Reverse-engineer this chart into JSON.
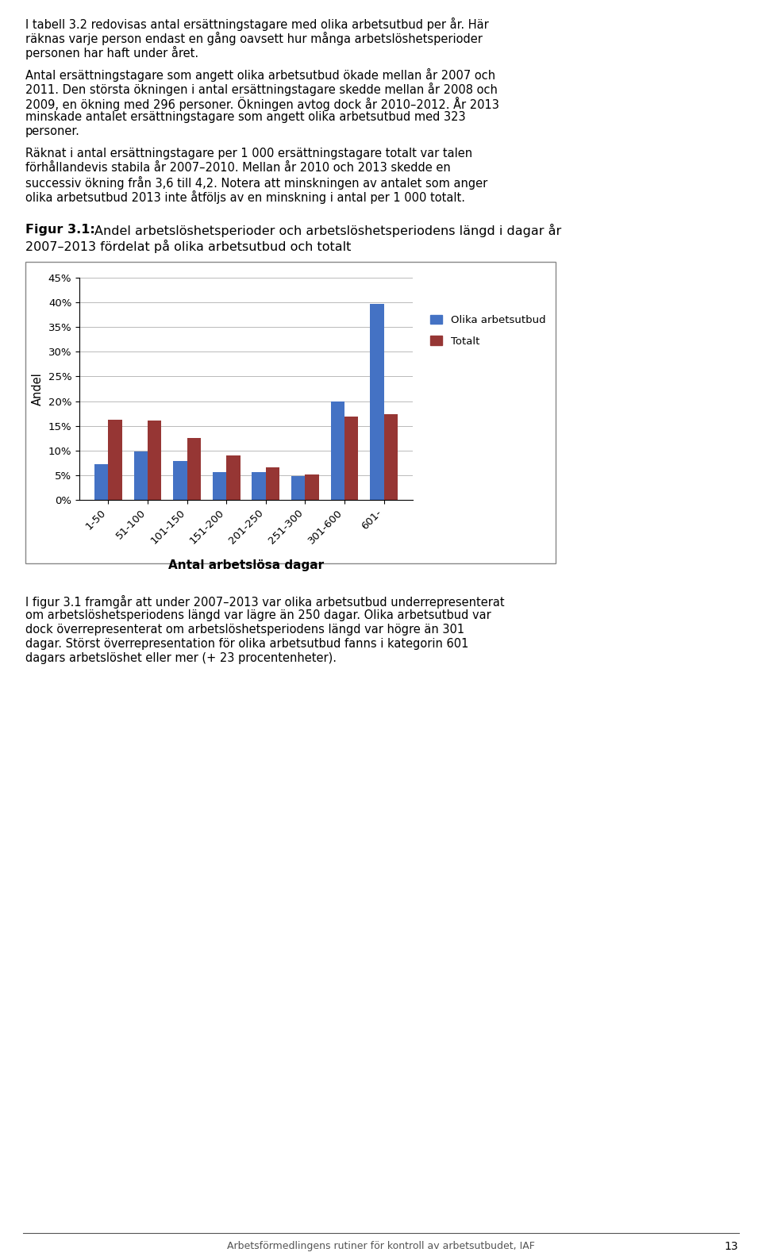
{
  "paragraph1": "I tabell 3.2 redovisas antal ersättningstagare med olika arbetsutbud per år. Här räknas varje person endast en gång oavsett hur många arbetslöshetsperioder personen har haft under året.",
  "paragraph2": "Antal ersättningstagare som angett olika arbetsutbud ökade mellan år 2007 och 2011. Den största ökningen i antal ersättningstagare skedde mellan år 2008 och 2009, en ökning med 296 personer. Ökningen avtog dock år 2010–2012. År 2013 minskade antalet ersättningstagare som angett olika arbetsutbud med 323 personer.",
  "paragraph3": "Räknat i antal ersättningstagare per 1 000 ersättningstagare totalt var talen förhållandevis stabila år 2007–2010. Mellan år 2010 och 2013 skedde en successiv ökning från 3,6 till 4,2. Notera att minskningen av antalet som anger olika arbetsutbud 2013 inte åtföljs av en minskning i antal per 1 000 totalt.",
  "fig_label": "Figur 3.1:",
  "fig_title": " Andel arbetslöshetsperioder och arbetslöshetsperiodens längd i dagar år 2007–2013 fördelat på olika arbetsutbud och totalt",
  "fig_title_line2": "2007–2013 fördelat på olika arbetsutbud och totalt",
  "categories": [
    "1-50",
    "51-100",
    "101-150",
    "151-200",
    "201-250",
    "251-300",
    "301-600",
    "601-"
  ],
  "olika_values": [
    7.3,
    9.8,
    7.9,
    5.6,
    5.7,
    4.8,
    20.0,
    39.7
  ],
  "totalt_values": [
    16.3,
    16.0,
    12.5,
    9.0,
    6.6,
    5.1,
    16.8,
    17.3
  ],
  "ylim": [
    0,
    45
  ],
  "yticks": [
    0,
    5,
    10,
    15,
    20,
    25,
    30,
    35,
    40,
    45
  ],
  "ylabel": "Andel",
  "xlabel": "Antal arbetslösa dagar",
  "legend_labels": [
    "Olika arbetsutbud",
    "Totalt"
  ],
  "bar_color_olika": "#4472C4",
  "bar_color_totalt": "#963634",
  "footer_text": "Arbetsförmedlingens rutiner för kontroll av arbetsutbudet, IAF",
  "footer_page": "13",
  "paragraph4": "I figur 3.1 framgår att under 2007–2013 var olika arbetsutbud underrepresenterat om arbetslöshetsperiodens längd var lägre än 250 dagar. Olika arbetsutbud var dock överrepresenterat om arbetslöshetsperiodens längd var högre än 301 dagar. Störst överrepresentation för olika arbetsutbud fanns i kategorin 601 dagars arbetslöshet eller mer (+ 23 procentenheter)."
}
